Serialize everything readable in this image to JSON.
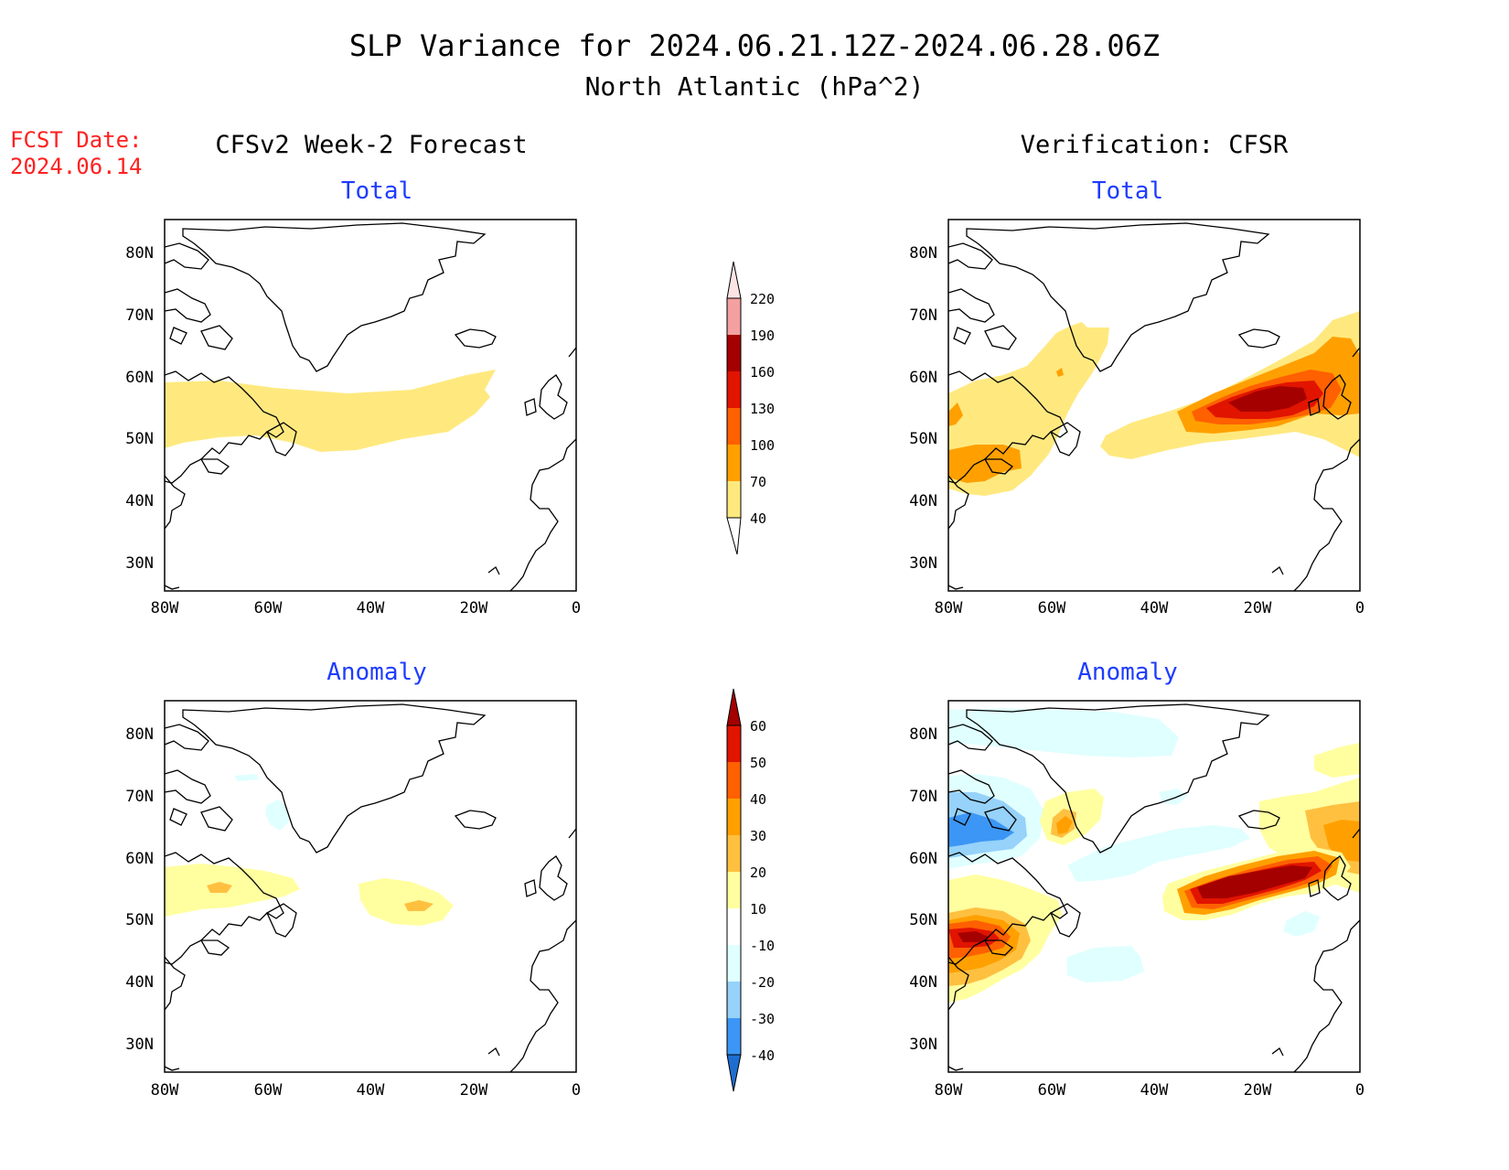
{
  "title": {
    "line1": "SLP Variance for 2024.06.21.12Z-2024.06.28.06Z",
    "line2": "North Atlantic (hPa^2)"
  },
  "fcst": {
    "label": "FCST Date:",
    "date": "2024.06.14"
  },
  "columns": {
    "left": "CFSv2 Week-2 Forecast",
    "right": "Verification: CFSR"
  },
  "panels": {
    "fcst_total": "Total",
    "fcst_anom": "Anomaly",
    "ver_total": "Total",
    "ver_anom": "Anomaly"
  },
  "axes": {
    "lat_labels": [
      "80N",
      "70N",
      "60N",
      "50N",
      "40N",
      "30N"
    ],
    "lon_labels": [
      "80W",
      "60W",
      "40W",
      "20W",
      "0"
    ]
  },
  "colorbar_total": {
    "levels": [
      "40",
      "70",
      "100",
      "130",
      "160",
      "190",
      "220"
    ],
    "colors": [
      "#ffe97f",
      "#ffa000",
      "#ff6000",
      "#e11400",
      "#a50000",
      "#f4a0a0",
      "#fde4e4"
    ]
  },
  "colorbar_anom": {
    "levels": [
      "60",
      "50",
      "40",
      "30",
      "20",
      "10",
      "-10",
      "-20",
      "-30",
      "-40"
    ],
    "colors": {
      "pos": [
        "#ffffa0",
        "#ffc040",
        "#ffa000",
        "#ff6000",
        "#e11400",
        "#a50000"
      ],
      "neg": [
        "#e0ffff",
        "#96d2fa",
        "#3c96f5",
        "#1e6ed2"
      ],
      "neutral": "#ffffff"
    }
  },
  "colors": {
    "title_text": "#000000",
    "panel_title": "#1e3cff",
    "fcst_date": "#ff2020",
    "coast": "#000000"
  }
}
